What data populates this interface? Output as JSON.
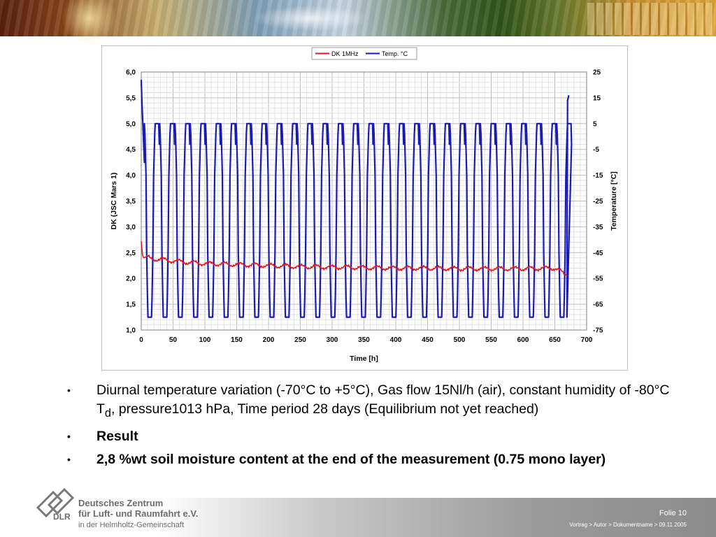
{
  "chart_data": {
    "type": "line",
    "legend": {
      "placement": "top-center",
      "entries": [
        "DK 1MHz",
        "Temp. °C"
      ]
    },
    "xlabel": "Time [h]",
    "ylabel": "DK (JSC Mars 1)",
    "y2label": "Temperature [°C]",
    "xlim": [
      0,
      700
    ],
    "ylim": [
      1.0,
      6.0
    ],
    "y2lim": [
      -75,
      25
    ],
    "x_ticks": [
      "0",
      "50",
      "100",
      "150",
      "200",
      "250",
      "300",
      "350",
      "400",
      "450",
      "500",
      "550",
      "600",
      "650",
      "700"
    ],
    "y_ticks": [
      "1,0",
      "1,5",
      "2,0",
      "2,5",
      "3,0",
      "3,5",
      "4,0",
      "4,5",
      "5,0",
      "5,5",
      "6,0"
    ],
    "y2_ticks": [
      "-75",
      "-65",
      "-55",
      "-45",
      "-35",
      "-25",
      "-15",
      "-5",
      "5",
      "15",
      "25"
    ],
    "grid": true,
    "series": [
      {
        "name": "DK 1MHz",
        "axis": "left",
        "color": "#e8141c",
        "x": [
          0,
          2,
          4,
          8,
          15,
          30,
          50,
          75,
          100,
          150,
          200,
          250,
          300,
          350,
          400,
          450,
          500,
          550,
          600,
          650,
          670
        ],
        "y": [
          2.72,
          2.45,
          2.4,
          2.42,
          2.38,
          2.37,
          2.34,
          2.31,
          2.29,
          2.27,
          2.25,
          2.23,
          2.22,
          2.21,
          2.2,
          2.2,
          2.19,
          2.19,
          2.19,
          2.2,
          2.05
        ]
      },
      {
        "name": "Temp. °C",
        "axis": "right",
        "color": "#1a1ab4",
        "diurnal_cycle": {
          "period_h": 24,
          "first_cycle_start_h": 5,
          "cycles": 28,
          "high_c": 5,
          "low_c": -70
        },
        "x": [
          0,
          1,
          3,
          5,
          669,
          670,
          672
        ],
        "y": [
          22,
          14,
          2,
          -10,
          -70,
          14,
          16
        ]
      }
    ]
  },
  "slide": {
    "bullet1_pre": "Diurnal temperature variation (-70°C to +5°C), Gas flow 15Nl/h (air), constant humidity of -80°C T",
    "bullet1_sub": "d",
    "bullet1_post": ", pressure1013 hPa, Time period 28 days (Equilibrium not yet reached)",
    "bullet2": "Result",
    "bullet3": "2,8 %wt soil moisture content at the end of the measurement (0.75 mono layer)",
    "bullet_marker": "•"
  },
  "footer": {
    "org_line1": "Deutsches Zentrum",
    "org_line2": "für Luft- und Raumfahrt e.V.",
    "org_line3": "in der Helmholtz-Gemeinschaft",
    "logo_text": "DLR",
    "folie": "Folie 10",
    "info": "Vortrag > Autor > Dokumentname > 09.11.2005"
  },
  "colors": {
    "text": "#000000",
    "footer_gray": "#6c6c6c",
    "dk_series": "#e8141c",
    "temp_series": "#1a1ab4"
  }
}
